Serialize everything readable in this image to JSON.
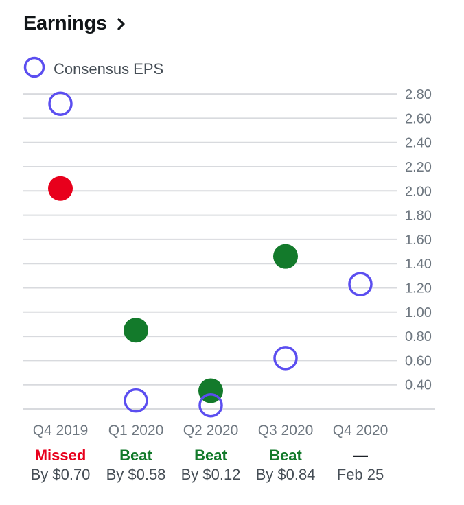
{
  "header": {
    "title": "Earnings"
  },
  "legend": {
    "label": "Consensus EPS",
    "color": "#5b4ef0"
  },
  "colors": {
    "missed": "#e8001c",
    "beat": "#137a2b",
    "neutral": "#6e7780",
    "estimate": "#5b4ef0"
  },
  "chart_data": {
    "type": "scatter",
    "categories": [
      "Q4 2019",
      "Q1 2020",
      "Q2 2020",
      "Q3 2020",
      "Q4 2020"
    ],
    "series": [
      {
        "name": "Consensus EPS",
        "values": [
          2.72,
          0.27,
          0.23,
          0.62,
          1.23
        ]
      },
      {
        "values": [
          2.02,
          0.85,
          0.35,
          1.46,
          null
        ]
      }
    ],
    "y_ticks": [
      "2.80",
      "2.60",
      "2.40",
      "2.20",
      "2.00",
      "1.80",
      "1.60",
      "1.40",
      "1.20",
      "1.00",
      "0.80",
      "0.60",
      "0.40"
    ],
    "ylim": [
      0.2,
      2.8
    ],
    "results": [
      {
        "status": "Missed",
        "kind": "missed",
        "detail": "By $0.70"
      },
      {
        "status": "Beat",
        "kind": "beat",
        "detail": "By $0.58"
      },
      {
        "status": "Beat",
        "kind": "beat",
        "detail": "By $0.12"
      },
      {
        "status": "Beat",
        "kind": "beat",
        "detail": "By $0.84"
      },
      {
        "status": "—",
        "kind": "neutral",
        "detail": "Feb 25"
      }
    ]
  }
}
